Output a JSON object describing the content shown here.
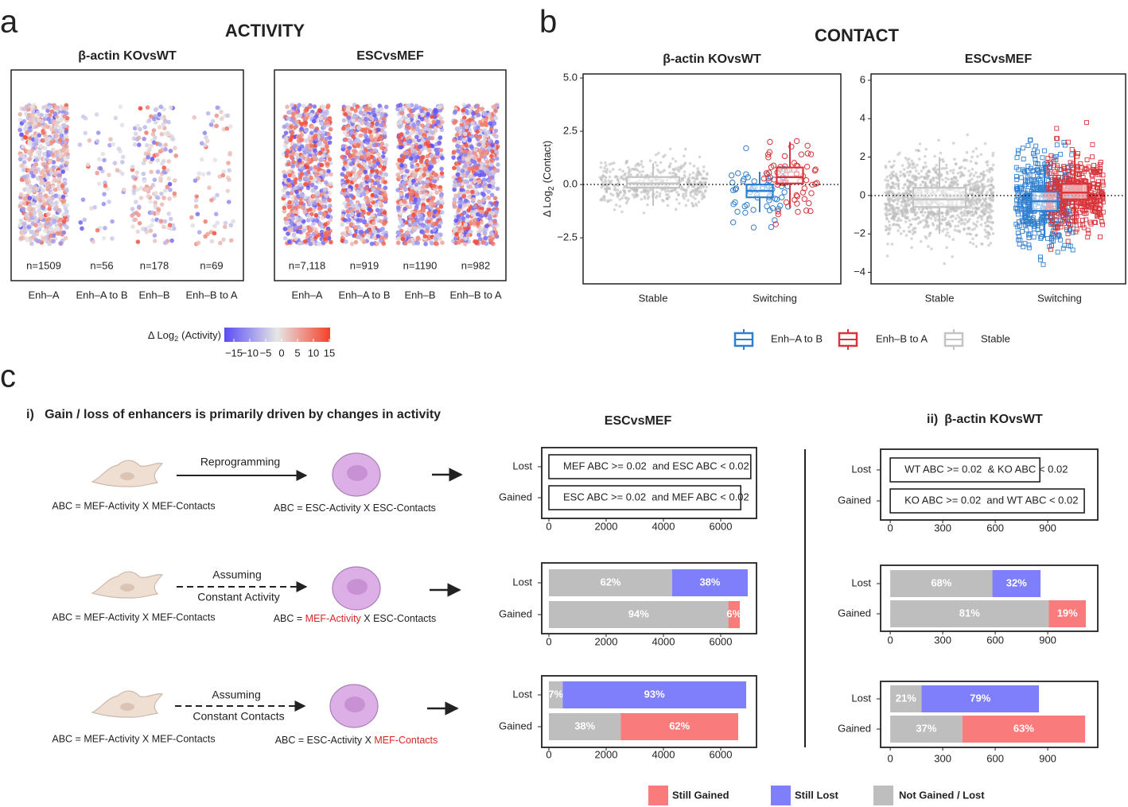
{
  "panel_labels": [
    "a",
    "b",
    "c"
  ],
  "activity_title": "ACTIVITY",
  "contact_title": "CONTACT",
  "section_c": {
    "subtitle_i": "i)   Gain / loss of enhancers is primarily driven by changes in activity",
    "esc_title": "ESCvsMEF",
    "ko_prefix": "ii)",
    "ko_title": "β-actin KOvsWT"
  },
  "diagram": {
    "rows": [
      {
        "arrow_label": [
          "Reprogramming"
        ],
        "left_formula": "ABC = MEF-Activity X MEF-Contacts",
        "right_formula": [
          "ABC = ESC-Activity X ESC-Contacts"
        ]
      },
      {
        "arrow_label": [
          "Assuming",
          "Constant Activity"
        ],
        "left_formula": "ABC = MEF-Activity X MEF-Contacts",
        "right_formula": [
          "ABC = ",
          "MEF-Activity",
          " X ESC-Contacts"
        ]
      },
      {
        "arrow_label": [
          "Assuming",
          "Constant Contacts"
        ],
        "left_formula": "ABC = MEF-Activity X MEF-Contacts",
        "right_formula": [
          "ABC = ESC-Activity X ",
          "MEF-Contacts"
        ]
      }
    ]
  },
  "chart_data": [
    {
      "type": "strip",
      "title": "β-actin KOvsWT",
      "categories": [
        "Enh–A",
        "Enh–A to B",
        "Enh–B",
        "Enh–B to A"
      ],
      "values": [
        1509,
        56,
        178,
        69
      ],
      "value_labels": [
        "n=1509",
        "n=56",
        "n=178",
        "n=69"
      ]
    },
    {
      "type": "strip",
      "title": "ESCvsMEF",
      "categories": [
        "Enh–A",
        "Enh–A to B",
        "Enh–B",
        "Enh–B to A"
      ],
      "values": [
        7118,
        919,
        1190,
        982
      ],
      "value_labels": [
        "n=7,118",
        "n=919",
        "n=1190",
        "n=982"
      ],
      "colorbar": {
        "title": "Δ Log",
        "title_sub": "2",
        "title_rest": "(Activity)",
        "lim": [
          -18,
          15.25
        ],
        "ticks": [
          {
            "value": -15,
            "label": "−15"
          },
          {
            "value": -10,
            "label": "−10"
          },
          {
            "value": -5,
            "label": "−5"
          },
          0,
          5,
          10,
          15
        ],
        "colors": [
          "#5a4cf5",
          "#e6e6e6",
          "#f5402a"
        ]
      }
    },
    {
      "type": "box",
      "title": "β-actin KOvsWT",
      "ylabel": "Δ Log",
      "ylabel_sub": "2",
      "ylabel_rest": "(Contact)",
      "categories": [
        "Stable",
        "Switching"
      ],
      "ylim": [
        -4.66,
        5.19
      ],
      "yticks": [
        {
          "value": -2.5,
          "label": "−2.5"
        },
        {
          "value": 0,
          "label": "0.0"
        },
        {
          "value": 2.5,
          "label": "2.5"
        },
        {
          "value": 5,
          "label": "5.0"
        }
      ],
      "hline": 0,
      "marker": "circle",
      "series": [
        {
          "name": "Enh–A to B",
          "color": "#2f7fd0",
          "median": [
            null,
            -0.3
          ],
          "q1": [
            null,
            -0.6
          ],
          "q3": [
            null,
            0.0
          ],
          "whisker_low": [
            null,
            -1.3
          ],
          "whisker_high": [
            null,
            0.6
          ]
        },
        {
          "name": "Enh–B to A",
          "color": "#d9343a",
          "median": [
            null,
            0.35
          ],
          "q1": [
            null,
            0.05
          ],
          "q3": [
            null,
            0.8
          ],
          "whisker_low": [
            null,
            -1.1
          ],
          "whisker_high": [
            null,
            2.0
          ]
        },
        {
          "name": "Stable",
          "color": "#c4c4c4",
          "median": [
            0.05,
            null
          ],
          "q1": [
            -0.15,
            null
          ],
          "q3": [
            0.35,
            null
          ],
          "whisker_low": [
            -1.0,
            null
          ],
          "whisker_high": [
            1.0,
            null
          ]
        }
      ]
    },
    {
      "type": "box",
      "title": "ESCvsMEF",
      "categories": [
        "Stable",
        "Switching"
      ],
      "ylim": [
        -4.6,
        6.33
      ],
      "yticks": [
        {
          "value": -4,
          "label": "−4"
        },
        {
          "value": -2,
          "label": "−2"
        },
        0,
        2,
        4,
        6
      ],
      "hline": 0,
      "marker": "square",
      "series": [
        {
          "color": "#2f7fd0",
          "median": [
            null,
            -0.3
          ],
          "q1": [
            null,
            -0.8
          ],
          "q3": [
            null,
            0.2
          ],
          "whisker_low": [
            null,
            -2.2
          ],
          "whisker_high": [
            null,
            1.6
          ]
        },
        {
          "color": "#d9343a",
          "median": [
            null,
            0.15
          ],
          "q1": [
            null,
            -0.2
          ],
          "q3": [
            null,
            0.6
          ],
          "whisker_low": [
            null,
            -1.5
          ],
          "whisker_high": [
            null,
            2.4
          ]
        },
        {
          "color": "#c4c4c4",
          "median": [
            -0.2,
            null
          ],
          "q1": [
            -0.6,
            null
          ],
          "q3": [
            0.4,
            null
          ],
          "whisker_low": [
            -2.0,
            null
          ],
          "whisker_high": [
            2.0,
            null
          ]
        }
      ]
    },
    {
      "type": "bar",
      "orientation": "horizontal",
      "categories": [
        "Lost",
        "Gained"
      ],
      "values": [
        7050,
        6700
      ],
      "texts": [
        "MEF ABC >= 0.02  and ESC ABC < 0.02",
        "ESC ABC >= 0.02  and MEF ABC < 0.02"
      ],
      "xlim": [
        -250,
        7250
      ],
      "xticks": [
        0,
        2000,
        4000,
        6000
      ]
    },
    {
      "type": "bar",
      "orientation": "horizontal",
      "stacked": true,
      "categories": [
        "Lost",
        "Gained"
      ],
      "xlim": [
        -250,
        7250
      ],
      "xticks": [
        0,
        2000,
        4000,
        6000
      ],
      "series": [
        {
          "name": "Not Gained / Lost",
          "color": "#bebebe",
          "values": [
            4305,
            6267
          ],
          "percent_labels": [
            "62%",
            "94%"
          ]
        },
        {
          "name": "Still Lost",
          "color": "#7f7ffb",
          "values": [
            2639,
            null
          ],
          "percent_labels": [
            "38%",
            null
          ]
        },
        {
          "name": "Still Gained",
          "color": "#fa7b7b",
          "values": [
            null,
            400
          ],
          "percent_labels": [
            null,
            "6%"
          ]
        }
      ]
    },
    {
      "type": "bar",
      "orientation": "horizontal",
      "stacked": true,
      "categories": [
        "Lost",
        "Gained"
      ],
      "xlim": [
        -250,
        7250
      ],
      "xticks": [
        0,
        2000,
        4000,
        6000
      ],
      "series": [
        {
          "color": "#bebebe",
          "values": [
            482,
            2512
          ],
          "percent_labels": [
            "7%",
            "38%"
          ]
        },
        {
          "color": "#7f7ffb",
          "values": [
            6407,
            null
          ],
          "percent_labels": [
            "93%",
            null
          ]
        },
        {
          "color": "#fa7b7b",
          "values": [
            null,
            4099
          ],
          "percent_labels": [
            null,
            "62%"
          ]
        }
      ]
    },
    {
      "type": "bar",
      "orientation": "horizontal",
      "categories": [
        "Lost",
        "Gained"
      ],
      "values": [
        855,
        1109
      ],
      "texts": [
        "WT ABC >= 0.02  & KO ABC < 0.02",
        "KO ABC >= 0.02  and WT ABC < 0.02"
      ],
      "xlim": [
        -55,
        1186
      ],
      "xticks": [
        0,
        300,
        600,
        900
      ]
    },
    {
      "type": "bar",
      "orientation": "horizontal",
      "stacked": true,
      "categories": [
        "Lost",
        "Gained"
      ],
      "xlim": [
        -55,
        1186
      ],
      "xticks": [
        0,
        300,
        600,
        900
      ],
      "series": [
        {
          "color": "#bebebe",
          "values": [
            584,
            906
          ],
          "percent_labels": [
            "68%",
            "81%"
          ]
        },
        {
          "color": "#7f7ffb",
          "values": [
            275,
            null
          ],
          "percent_labels": [
            "32%",
            null
          ]
        },
        {
          "color": "#fa7b7b",
          "values": [
            null,
            212
          ],
          "percent_labels": [
            null,
            "19%"
          ]
        }
      ]
    },
    {
      "type": "bar",
      "orientation": "horizontal",
      "stacked": true,
      "categories": [
        "Lost",
        "Gained"
      ],
      "xlim": [
        -55,
        1186
      ],
      "xticks": [
        0,
        300,
        600,
        900
      ],
      "series": [
        {
          "color": "#bebebe",
          "values": [
            179,
            412
          ],
          "percent_labels": [
            "21%",
            "37%"
          ]
        },
        {
          "color": "#7f7ffb",
          "values": [
            671,
            null
          ],
          "percent_labels": [
            "79%",
            null
          ]
        },
        {
          "color": "#fa7b7b",
          "values": [
            null,
            702
          ],
          "percent_labels": [
            null,
            "63%"
          ]
        }
      ]
    }
  ]
}
